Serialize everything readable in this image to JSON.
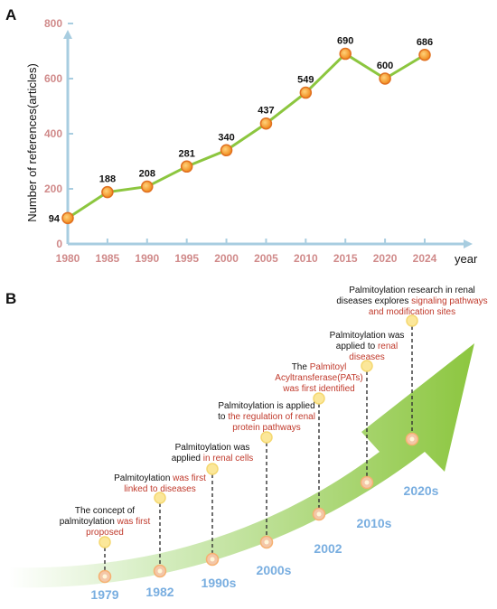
{
  "panel_a": {
    "label": "A"
  },
  "panel_b": {
    "label": "B"
  },
  "chart_data": {
    "type": "line",
    "title": "",
    "xlabel": "year",
    "ylabel": "Number of references(articles)",
    "ylim": [
      0,
      900
    ],
    "yticks": [
      0,
      200,
      400,
      600,
      800
    ],
    "x": [
      1980,
      1985,
      1990,
      1995,
      2000,
      2005,
      2010,
      2015,
      2020,
      2024
    ],
    "series": [
      {
        "values": [
          94,
          188,
          208,
          281,
          340,
          437,
          549,
          690,
          600,
          686
        ]
      }
    ],
    "grid": false,
    "colors": {
      "line": "#8cc63f",
      "marker": "#f39c12",
      "marker_edge": "#e07020",
      "axis": "#a8cde0"
    }
  },
  "timeline": {
    "arrow_color": "#8cc63f",
    "decade_color": "#79aee0",
    "events": [
      {
        "year": "1979",
        "lines": [
          [
            [
              "The concept of",
              "black"
            ]
          ],
          [
            [
              "palmitoylation ",
              "black"
            ],
            [
              "was first",
              "red"
            ]
          ],
          [
            [
              "proposed",
              "red"
            ]
          ]
        ]
      },
      {
        "year": "1982",
        "lines": [
          [
            [
              "Palmitoylation ",
              "black"
            ],
            [
              "was first",
              "red"
            ]
          ],
          [
            [
              "linked to diseases",
              "red"
            ]
          ]
        ]
      },
      {
        "year": "1990s",
        "lines": [
          [
            [
              "Palmitoylation was",
              "black"
            ]
          ],
          [
            [
              "applied ",
              "black"
            ],
            [
              "in renal cells",
              "red"
            ]
          ]
        ]
      },
      {
        "year": "2000s",
        "lines": [
          [
            [
              "Palmitoylation is applied",
              "black"
            ]
          ],
          [
            [
              "to ",
              "black"
            ],
            [
              "the regulation of renal",
              "red"
            ]
          ],
          [
            [
              "protein pathways",
              "red"
            ]
          ]
        ]
      },
      {
        "year": "2002",
        "lines": [
          [
            [
              "The ",
              "black"
            ],
            [
              "Palmitoyl",
              "red"
            ]
          ],
          [
            [
              "Acyltransferase(PATs)",
              "red"
            ]
          ],
          [
            [
              "was first identified",
              "red"
            ]
          ]
        ]
      },
      {
        "year": "2010s",
        "lines": [
          [
            [
              "Palmitoylation was",
              "black"
            ]
          ],
          [
            [
              "applied to ",
              "black"
            ],
            [
              "renal",
              "red"
            ]
          ],
          [
            [
              "diseases",
              "red"
            ]
          ]
        ]
      },
      {
        "year": "2020s",
        "lines": [
          [
            [
              "Palmitoylation research in renal",
              "black"
            ]
          ],
          [
            [
              "diseases explores ",
              "black"
            ],
            [
              "signaling pathways",
              "red"
            ]
          ],
          [
            [
              "and modification sites",
              "red"
            ]
          ]
        ]
      }
    ]
  }
}
